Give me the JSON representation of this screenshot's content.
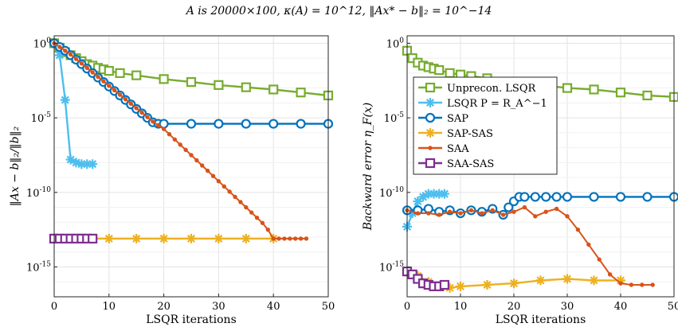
{
  "figure": {
    "title": "A is 20000×100, κ(A) = 10^12, ‖Ax* − b‖₂ = 10^−14"
  },
  "legend": {
    "location": "top-left of right panel",
    "entries": [
      "Unprecon. LSQR",
      "LSQR P = R_A^−1",
      "SAP",
      "SAP-SAS",
      "SAA",
      "SAA-SAS"
    ]
  },
  "chart_data": [
    {
      "type": "line",
      "xlabel": "LSQR iterations",
      "ylabel": "‖Ax − b‖₂/‖b‖₂",
      "xlim": [
        0,
        50
      ],
      "ylim_log10": [
        -17,
        0.5
      ],
      "yscale": "log",
      "xticks": [
        0,
        10,
        20,
        30,
        40,
        50
      ],
      "yticks_log10": [
        0,
        -5,
        -10,
        -15
      ],
      "ytick_labels": [
        "10^0",
        "10^-5",
        "10^-10",
        "10^-15"
      ],
      "grid": true,
      "series": [
        {
          "name": "Unprecon. LSQR",
          "color": "#77AC30",
          "marker": "square",
          "x": [
            0,
            1,
            2,
            3,
            4,
            5,
            6,
            7,
            8,
            9,
            10,
            12,
            15,
            20,
            25,
            30,
            35,
            40,
            45,
            50
          ],
          "log10_y": [
            0,
            -0.3,
            -0.6,
            -0.8,
            -1.0,
            -1.2,
            -1.4,
            -1.5,
            -1.65,
            -1.75,
            -1.85,
            -2.0,
            -2.15,
            -2.4,
            -2.6,
            -2.8,
            -2.95,
            -3.1,
            -3.3,
            -3.5
          ]
        },
        {
          "name": "LSQR P = R_A^−1",
          "color": "#4DBEEE",
          "marker": "star",
          "x": [
            0,
            1,
            2,
            3,
            4,
            5,
            6,
            7
          ],
          "log10_y": [
            0,
            -0.8,
            -3.8,
            -7.8,
            -8.0,
            -8.1,
            -8.1,
            -8.1
          ]
        },
        {
          "name": "SAP",
          "color": "#0072BD",
          "marker": "circle",
          "x": [
            0,
            1,
            2,
            3,
            4,
            5,
            6,
            7,
            8,
            9,
            10,
            11,
            12,
            13,
            14,
            15,
            16,
            17,
            18,
            19,
            20,
            25,
            30,
            35,
            40,
            45,
            50
          ],
          "log10_y": [
            0,
            -0.25,
            -0.5,
            -0.8,
            -1.1,
            -1.4,
            -1.7,
            -2.0,
            -2.3,
            -2.6,
            -2.9,
            -3.2,
            -3.5,
            -3.8,
            -4.1,
            -4.4,
            -4.7,
            -5.0,
            -5.3,
            -5.4,
            -5.4,
            -5.4,
            -5.4,
            -5.4,
            -5.4,
            -5.4,
            -5.4
          ]
        },
        {
          "name": "SAP-SAS",
          "color": "#EDB120",
          "marker": "star",
          "x": [
            0,
            5,
            10,
            15,
            20,
            25,
            30,
            35,
            40
          ],
          "log10_y": [
            -13.1,
            -13.1,
            -13.1,
            -13.1,
            -13.1,
            -13.1,
            -13.1,
            -13.1,
            -13.1
          ]
        },
        {
          "name": "SAA",
          "color": "#D95319",
          "marker": "dot",
          "x": [
            0,
            1,
            2,
            3,
            4,
            5,
            6,
            7,
            8,
            9,
            10,
            11,
            12,
            13,
            14,
            15,
            16,
            17,
            18,
            19,
            20,
            21,
            22,
            23,
            24,
            25,
            26,
            27,
            28,
            29,
            30,
            31,
            32,
            33,
            34,
            35,
            36,
            37,
            38,
            39,
            40,
            41,
            42,
            43,
            44,
            45,
            46
          ],
          "log10_y": [
            0,
            -0.25,
            -0.5,
            -0.75,
            -1.05,
            -1.35,
            -1.65,
            -1.95,
            -2.25,
            -2.55,
            -2.85,
            -3.15,
            -3.45,
            -3.75,
            -4.05,
            -4.35,
            -4.65,
            -4.95,
            -5.25,
            -5.5,
            -5.75,
            -6.1,
            -6.45,
            -6.8,
            -7.15,
            -7.5,
            -7.85,
            -8.2,
            -8.55,
            -8.9,
            -9.25,
            -9.6,
            -9.95,
            -10.3,
            -10.65,
            -11.0,
            -11.35,
            -11.7,
            -12.05,
            -12.5,
            -13.1,
            -13.1,
            -13.1,
            -13.1,
            -13.1,
            -13.1,
            -13.1
          ]
        },
        {
          "name": "SAA-SAS",
          "color": "#7E2F8E",
          "marker": "square",
          "x": [
            0,
            1,
            2,
            3,
            4,
            5,
            6,
            7
          ],
          "log10_y": [
            -13.1,
            -13.1,
            -13.1,
            -13.1,
            -13.1,
            -13.1,
            -13.1,
            -13.1
          ]
        }
      ]
    },
    {
      "type": "line",
      "xlabel": "LSQR iterations",
      "ylabel": "Backward error η_F(x)",
      "xlim": [
        0,
        50
      ],
      "ylim_log10": [
        -17,
        0.5
      ],
      "yscale": "log",
      "xticks": [
        0,
        10,
        20,
        30,
        40,
        50
      ],
      "yticks_log10": [
        0,
        -5,
        -10,
        -15
      ],
      "ytick_labels": [
        "10^0",
        "10^-5",
        "10^-10",
        "10^-15"
      ],
      "grid": true,
      "series": [
        {
          "name": "Unprecon. LSQR",
          "color": "#77AC30",
          "marker": "square",
          "x": [
            0,
            1,
            2,
            3,
            4,
            5,
            6,
            8,
            10,
            12,
            15,
            20,
            25,
            30,
            35,
            40,
            45,
            50
          ],
          "log10_y": [
            -0.5,
            -1.0,
            -1.3,
            -1.5,
            -1.6,
            -1.7,
            -1.8,
            -2.0,
            -2.1,
            -2.2,
            -2.35,
            -2.6,
            -2.8,
            -3.0,
            -3.1,
            -3.3,
            -3.5,
            -3.6
          ]
        },
        {
          "name": "LSQR P = R_A^−1",
          "color": "#4DBEEE",
          "marker": "star",
          "x": [
            0,
            1,
            2,
            3,
            4,
            5,
            6,
            7
          ],
          "log10_y": [
            -12.3,
            -11.4,
            -10.6,
            -10.3,
            -10.1,
            -10.1,
            -10.1,
            -10.1
          ]
        },
        {
          "name": "SAP",
          "color": "#0072BD",
          "marker": "circle",
          "x": [
            0,
            2,
            4,
            6,
            8,
            10,
            12,
            14,
            16,
            18,
            19,
            20,
            21,
            22,
            24,
            26,
            28,
            30,
            35,
            40,
            45,
            50
          ],
          "log10_y": [
            -11.2,
            -11.2,
            -11.1,
            -11.3,
            -11.2,
            -11.4,
            -11.2,
            -11.3,
            -11.1,
            -11.5,
            -11.0,
            -10.6,
            -10.3,
            -10.3,
            -10.3,
            -10.3,
            -10.3,
            -10.3,
            -10.3,
            -10.3,
            -10.3,
            -10.3
          ]
        },
        {
          "name": "SAP-SAS",
          "color": "#EDB120",
          "marker": "star",
          "x": [
            0,
            2,
            4,
            6,
            8,
            10,
            15,
            20,
            25,
            30,
            35,
            40
          ],
          "log10_y": [
            -15.3,
            -15.6,
            -16.0,
            -16.3,
            -16.4,
            -16.3,
            -16.2,
            -16.1,
            -15.9,
            -15.8,
            -15.9,
            -15.9
          ]
        },
        {
          "name": "SAA",
          "color": "#D95319",
          "marker": "dot",
          "x": [
            0,
            2,
            4,
            6,
            8,
            10,
            12,
            14,
            16,
            18,
            20,
            22,
            24,
            26,
            28,
            30,
            32,
            34,
            36,
            38,
            40,
            42,
            44,
            46
          ],
          "log10_y": [
            -11.2,
            -11.4,
            -11.4,
            -11.5,
            -11.3,
            -11.4,
            -11.2,
            -11.4,
            -11.2,
            -11.5,
            -11.3,
            -11.0,
            -11.6,
            -11.3,
            -11.1,
            -11.6,
            -12.5,
            -13.5,
            -14.5,
            -15.5,
            -16.1,
            -16.2,
            -16.2,
            -16.2
          ]
        },
        {
          "name": "SAA-SAS",
          "color": "#7E2F8E",
          "marker": "square",
          "x": [
            0,
            1,
            2,
            3,
            4,
            5,
            6,
            7
          ],
          "log10_y": [
            -15.3,
            -15.5,
            -15.8,
            -16.1,
            -16.2,
            -16.3,
            -16.3,
            -16.2
          ]
        }
      ]
    }
  ]
}
